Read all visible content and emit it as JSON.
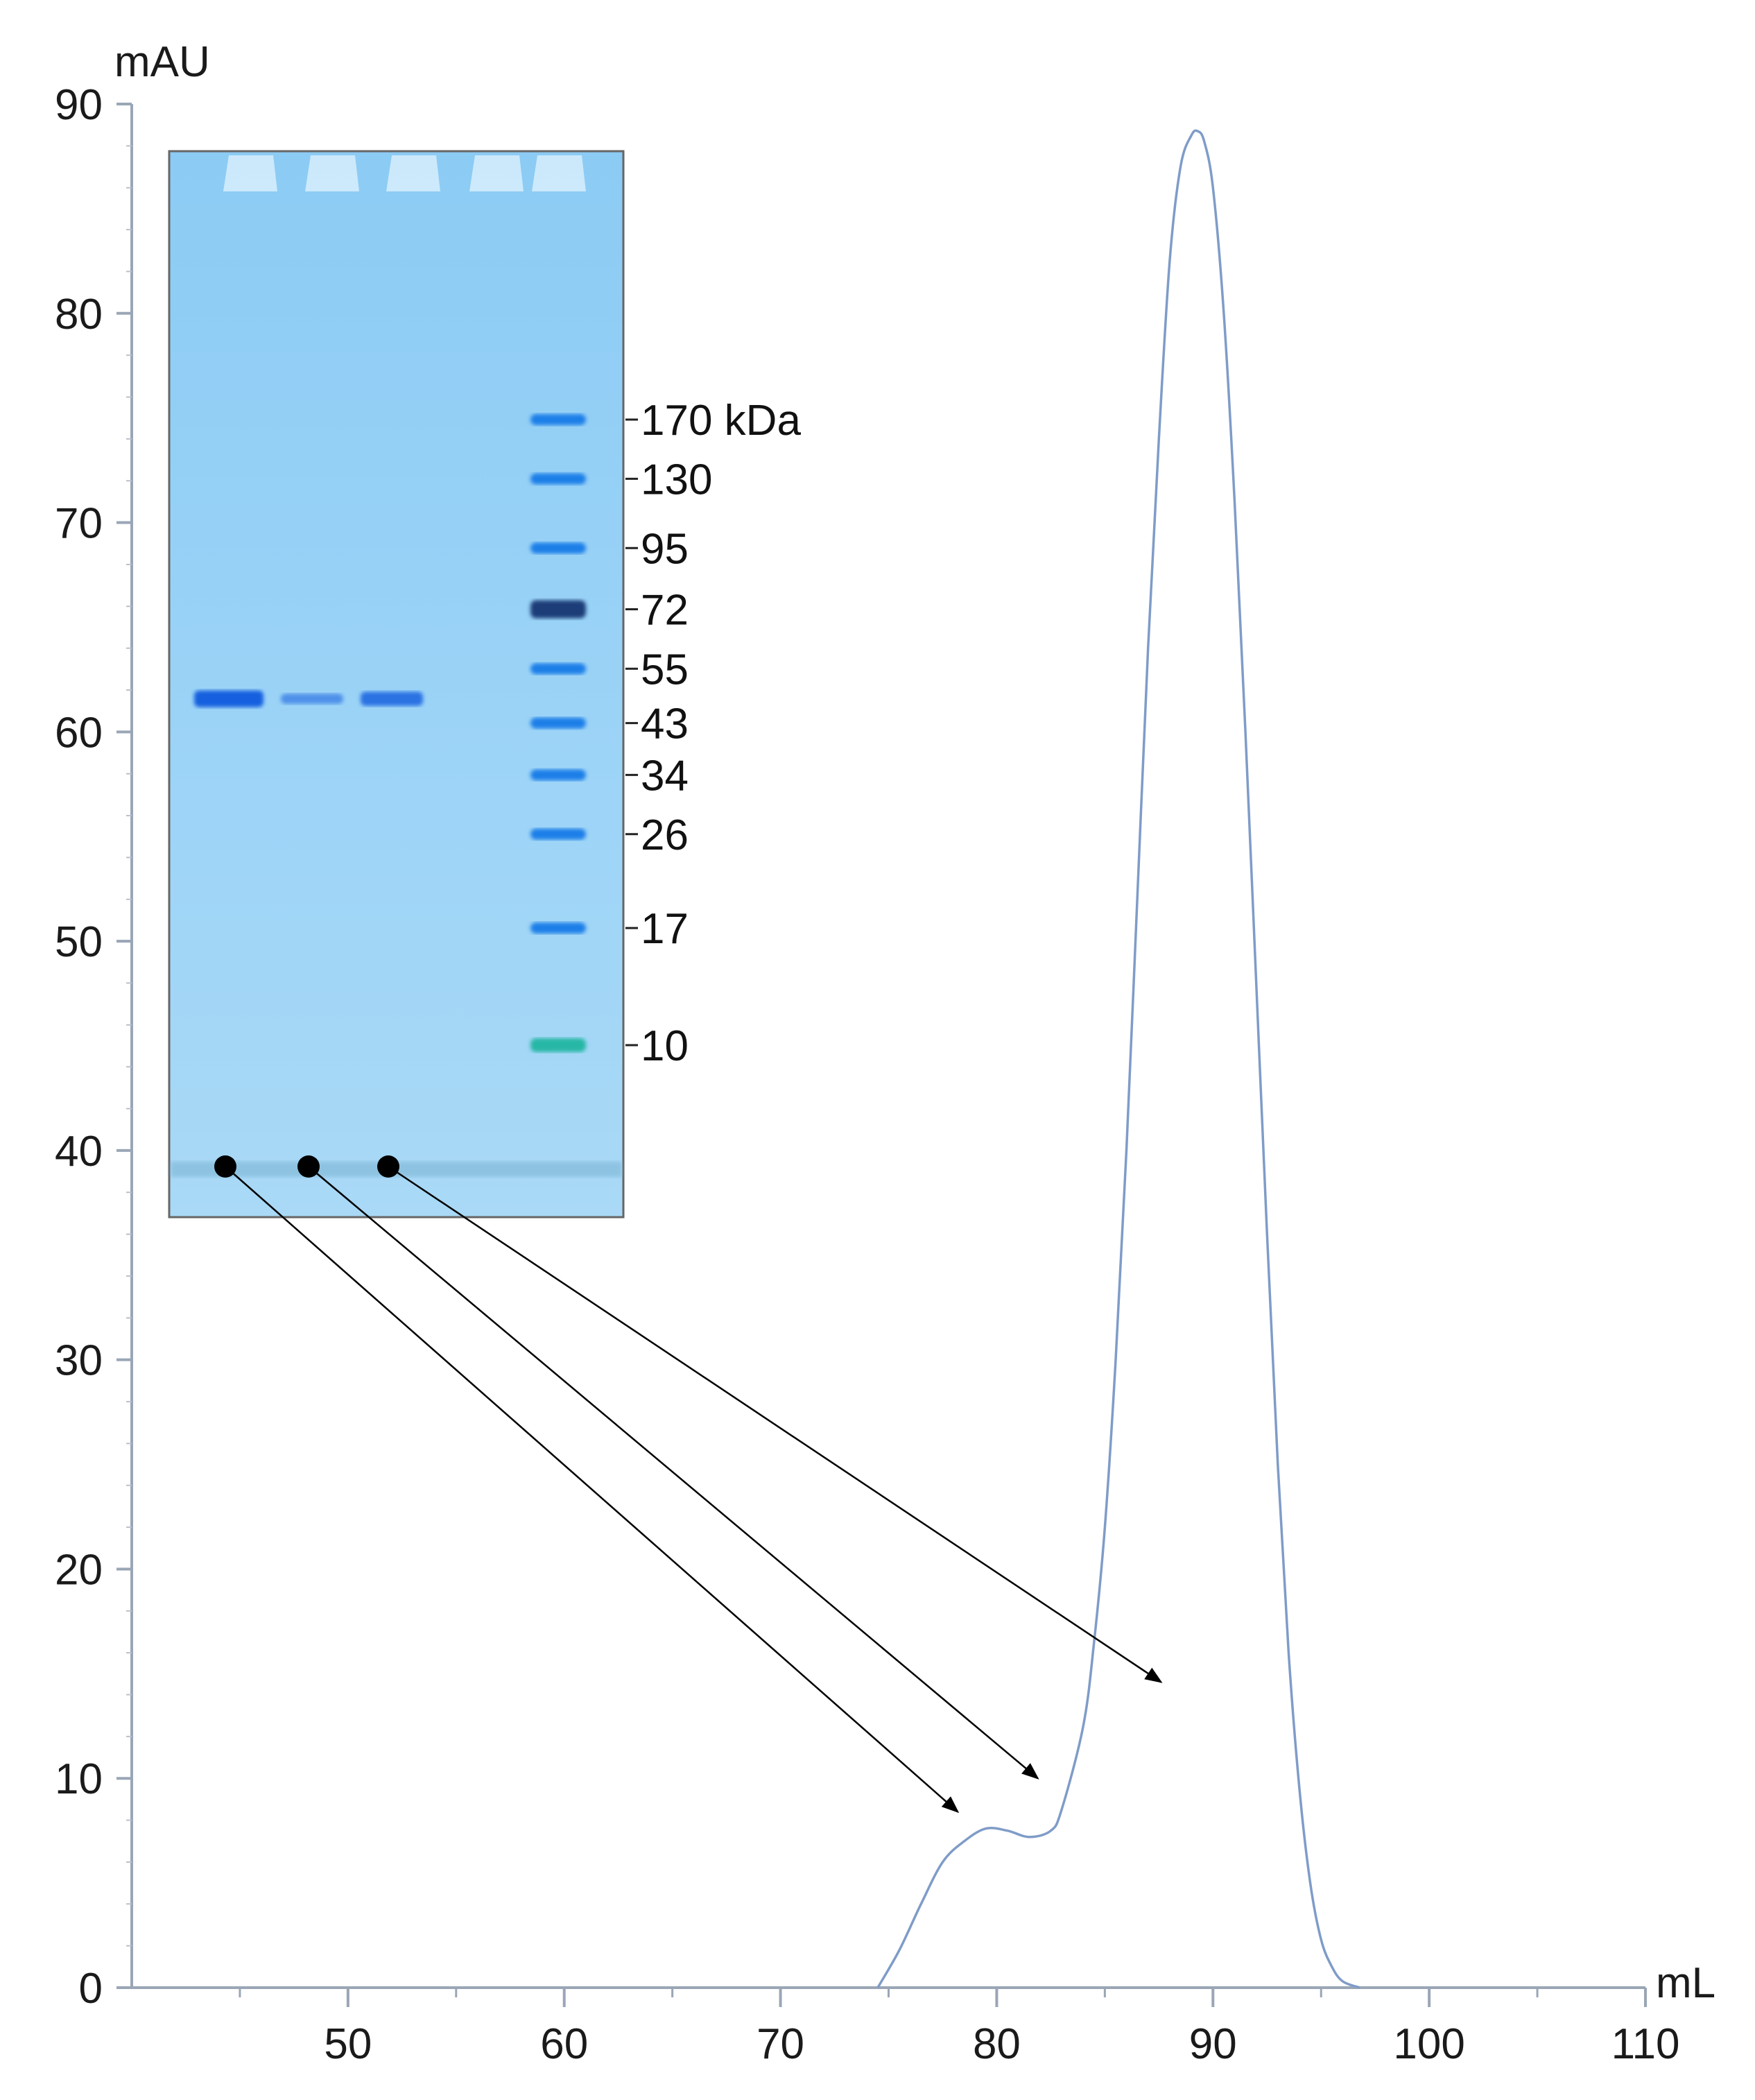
{
  "chart_data": {
    "type": "line",
    "title": "",
    "xlabel": "mL",
    "ylabel": "mAU",
    "xlim": [
      40,
      110
    ],
    "ylim": [
      0,
      90
    ],
    "x_ticks": [
      50,
      60,
      70,
      80,
      90,
      100,
      110
    ],
    "y_ticks": [
      0,
      10,
      20,
      30,
      40,
      50,
      60,
      70,
      80,
      90
    ],
    "grid": false,
    "legend": "none",
    "line_color": "#7f9cc8",
    "series": [
      {
        "x": [
          74.5,
          75.5,
          76.5,
          77.5,
          78.5,
          79.5,
          80.5,
          81.5,
          82.5,
          83.0,
          84.0,
          84.5,
          85.0,
          85.5,
          86.0,
          86.5,
          87.0,
          87.5,
          88.0,
          88.5,
          89.0,
          89.3,
          89.6,
          90.0,
          90.5,
          91.0,
          91.5,
          92.0,
          92.5,
          93.0,
          93.5,
          94.0,
          94.5,
          95.0,
          95.5,
          96.0,
          96.8
        ],
        "y": [
          0,
          1.8,
          4.0,
          6.0,
          7.0,
          7.6,
          7.5,
          7.2,
          7.5,
          8.5,
          12.5,
          16.5,
          22.0,
          30.0,
          40.0,
          52.0,
          64.0,
          74.0,
          82.5,
          87.0,
          88.5,
          88.7,
          88.2,
          86.0,
          80.0,
          71.0,
          60.0,
          48.0,
          36.0,
          25.0,
          16.0,
          9.5,
          5.0,
          2.3,
          1.0,
          0.3,
          0
        ]
      }
    ],
    "inset_gel": {
      "marker_unit": "kDa",
      "marker_labels": [
        "170 kDa",
        "130",
        "95",
        "72",
        "55",
        "43",
        "34",
        "26",
        "17",
        "10"
      ],
      "marker_kda": [
        170,
        130,
        95,
        72,
        55,
        43,
        34,
        26,
        17,
        10
      ],
      "sample_lanes": 3,
      "sample_band_kda": 48,
      "sample_band_intensity": [
        1.0,
        0.35,
        0.75
      ],
      "lane_fraction_ml": [
        78,
        81.5,
        87.5
      ]
    }
  }
}
